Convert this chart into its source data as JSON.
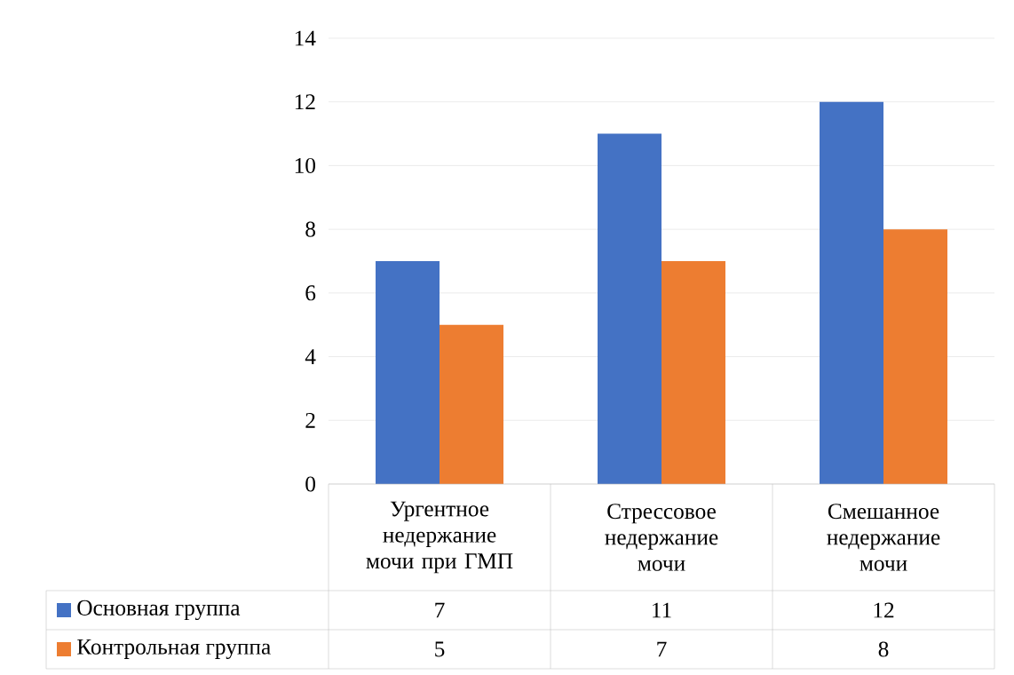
{
  "chart_data": {
    "type": "bar",
    "categories": [
      "Ургентное недержание мочи при ГМП",
      "Стрессовое недержание мочи",
      "Смешанное недержание мочи"
    ],
    "series": [
      {
        "name": "Основная группа",
        "color": "#4472c4",
        "values": [
          7,
          11,
          12
        ]
      },
      {
        "name": "Контрольная группа",
        "color": "#ed7d31",
        "values": [
          5,
          7,
          8
        ]
      }
    ],
    "ylim": [
      0,
      14
    ],
    "yticks": [
      0,
      2,
      4,
      6,
      8,
      10,
      12,
      14
    ],
    "grid": "y",
    "legend": "bottom left",
    "data_labels": true
  }
}
